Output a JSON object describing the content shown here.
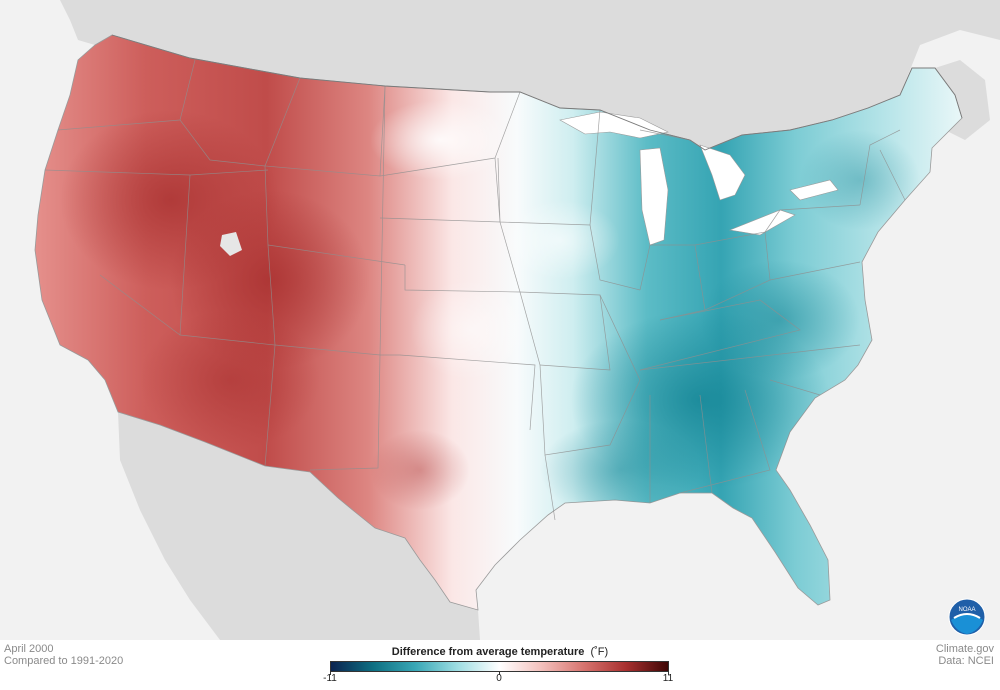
{
  "map": {
    "period": "April 2000",
    "baseline": "Compared to 1991-2020",
    "credit_site": "Climate.gov",
    "credit_data": "Data: NCEI",
    "logo_text": "NOAA"
  },
  "legend": {
    "title": "Difference from average temperature",
    "unit": "(˚F)",
    "min_label": "-11",
    "mid_label": "0",
    "max_label": "11",
    "min": -11,
    "max": 11,
    "colors": [
      "#0b2350",
      "#0e6f82",
      "#39a7b6",
      "#9edde2",
      "#ffffff",
      "#f3c0bc",
      "#d7746f",
      "#a8302f",
      "#3f0706"
    ]
  },
  "colors": {
    "land": "#f2f2f2",
    "neighbor_land": "#dcdcdc",
    "water": "#ffffff",
    "state_lines": "#9a9a9a",
    "warm": "#c85553",
    "cool": "#2fa3b3"
  }
}
